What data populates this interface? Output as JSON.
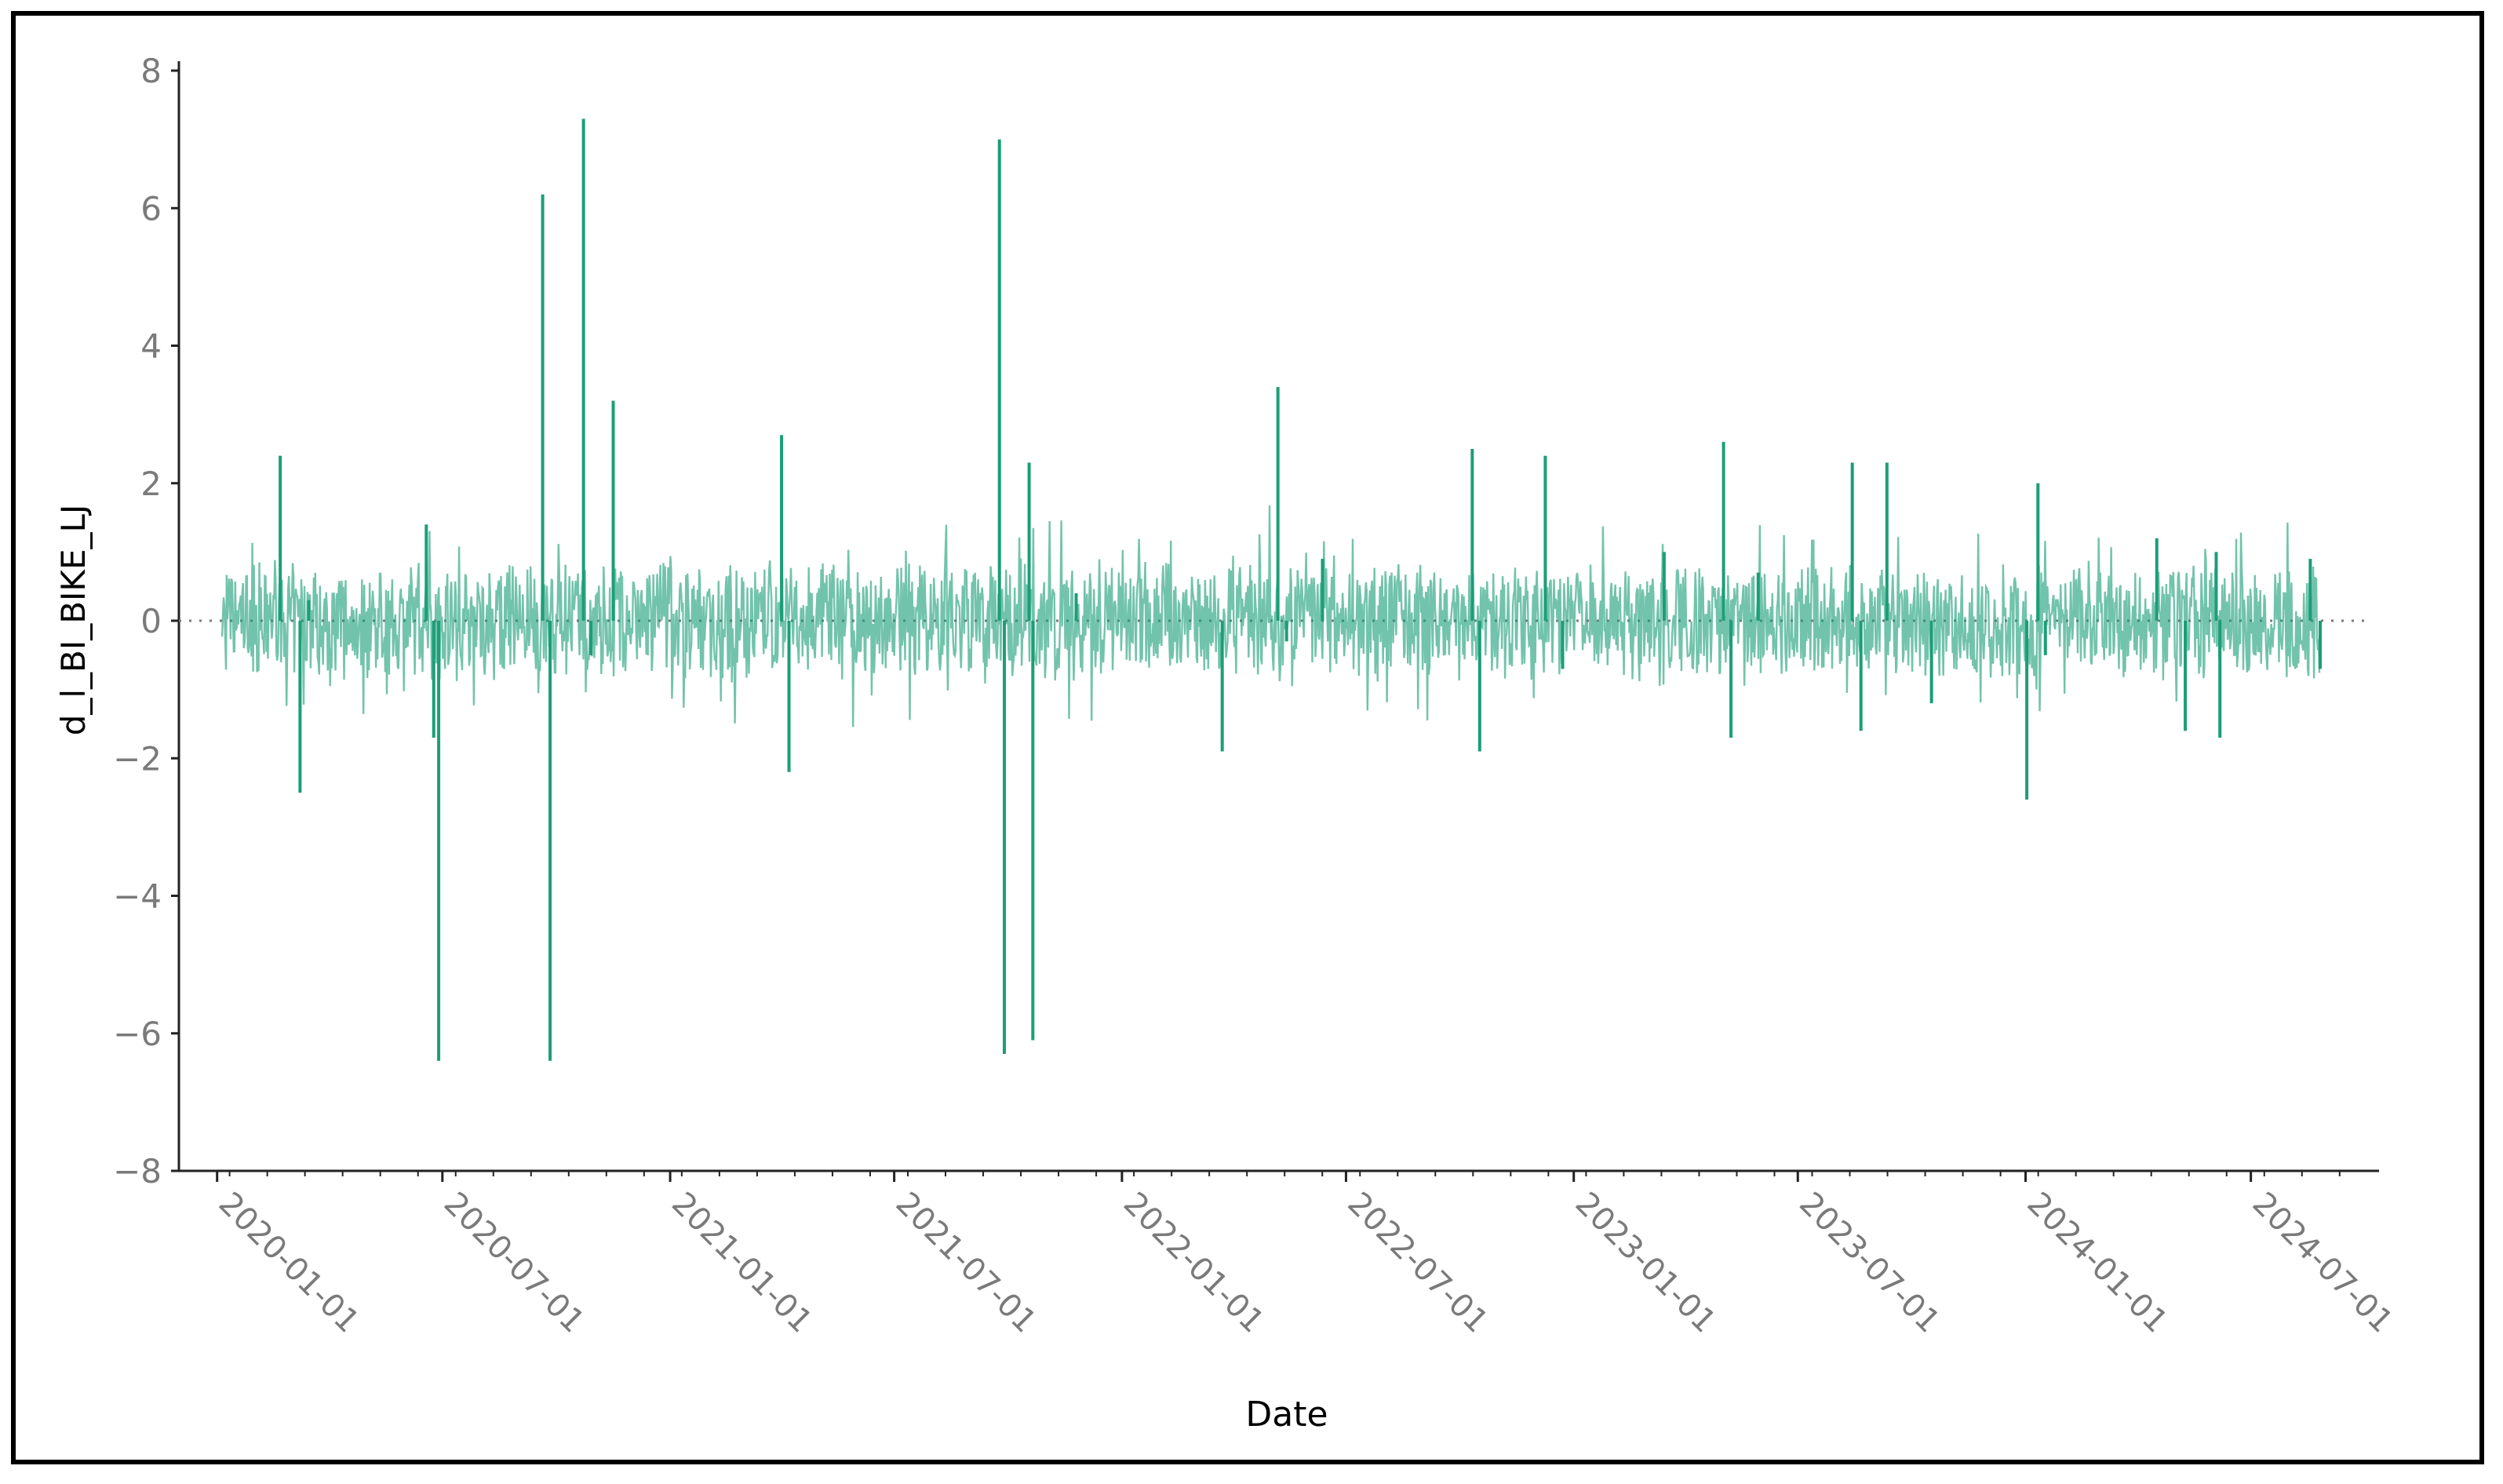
{
  "chart_data": {
    "type": "line",
    "xlabel": "Date",
    "ylabel": "d_l_BI_BIKE_LJ",
    "x_range": [
      "2020-01-05",
      "2024-08-26"
    ],
    "ylim": [
      -8,
      8
    ],
    "y_ticks": [
      -8,
      -6,
      -4,
      -2,
      0,
      2,
      4,
      6,
      8
    ],
    "x_ticks": [
      "2020-01-01",
      "2020-07-01",
      "2021-01-01",
      "2021-07-01",
      "2022-01-01",
      "2022-07-01",
      "2023-01-01",
      "2023-07-01",
      "2024-01-01",
      "2024-07-01"
    ],
    "zero_reference_line": true,
    "grid": false,
    "legend": "none",
    "series": [
      {
        "color": "#1b9e77",
        "x": [
          "2020-01-05",
          "2020-02-21",
          "2020-03-08",
          "2020-03-15",
          "2020-06-18",
          "2020-06-24",
          "2020-06-28",
          "2020-09-10",
          "2020-09-20",
          "2020-09-26",
          "2020-10-23",
          "2020-10-29",
          "2020-11-16",
          "2021-04-01",
          "2021-04-07",
          "2021-09-24",
          "2021-09-28",
          "2021-10-13",
          "2021-10-18",
          "2021-10-21",
          "2021-11-18",
          "2021-11-25",
          "2022-03-23",
          "2022-05-07",
          "2022-05-14",
          "2022-06-12",
          "2022-10-11",
          "2022-10-17",
          "2022-12-01",
          "2022-12-09",
          "2022-12-23",
          "2023-03-15",
          "2023-05-02",
          "2023-05-08",
          "2023-05-30",
          "2023-08-14",
          "2023-08-21",
          "2023-09-11",
          "2023-10-17",
          "2024-01-02",
          "2024-01-11",
          "2024-01-17",
          "2024-04-16",
          "2024-05-09",
          "2024-06-03",
          "2024-06-06",
          "2024-08-18",
          "2024-08-26"
        ],
        "y": [
          0.0,
          2.4,
          -2.5,
          0.3,
          1.4,
          -1.7,
          -6.4,
          0.0,
          6.2,
          -6.4,
          7.3,
          -0.5,
          3.2,
          2.7,
          -2.2,
          7.0,
          -6.3,
          0.0,
          2.3,
          -6.1,
          0.0,
          0.4,
          -1.9,
          3.4,
          -0.3,
          0.9,
          2.5,
          -1.9,
          0.0,
          2.4,
          -0.7,
          1.0,
          2.6,
          -1.7,
          0.7,
          2.3,
          -1.6,
          2.3,
          -1.2,
          -2.6,
          2.0,
          -0.5,
          1.2,
          -1.6,
          1.0,
          -1.7,
          0.9,
          -0.7
        ]
      }
    ]
  }
}
